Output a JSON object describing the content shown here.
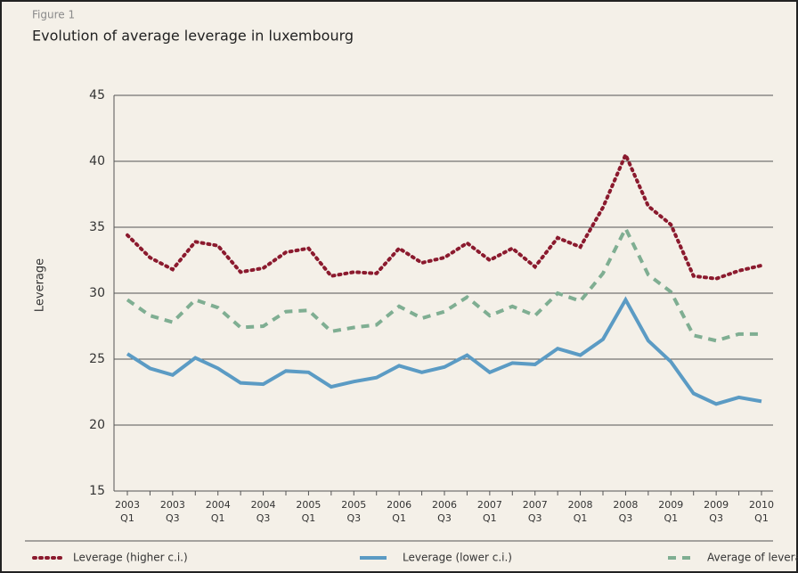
{
  "figure_label": "Figure 1",
  "chart_data": {
    "type": "line",
    "title": "Evolution of average leverage in luxembourg",
    "y_label": "Leverage",
    "categories": [
      "2003 Q1",
      null,
      "2003 Q3",
      null,
      "2004 Q1",
      null,
      "2004 Q3",
      null,
      "2005 Q1",
      null,
      "2005 Q3",
      null,
      "2006 Q1",
      null,
      "2006 Q3",
      null,
      "2007 Q1",
      null,
      "2007 Q3",
      null,
      "2008 Q1",
      null,
      "2008 Q3",
      null,
      "2009 Q1",
      null,
      "2009 Q3",
      null,
      "2010 Q1"
    ],
    "ylim": [
      15,
      45
    ],
    "yticks": [
      15,
      20,
      25,
      30,
      35,
      40,
      45
    ],
    "grid": true,
    "legend": "bottom",
    "series": [
      {
        "name": "Leverage (higher c.i.)",
        "color": "#8b1a2e",
        "line_style": "dotted",
        "values": [
          34.4,
          32.7,
          31.8,
          33.9,
          33.6,
          31.6,
          31.9,
          33.1,
          33.4,
          31.3,
          31.6,
          31.5,
          33.4,
          32.3,
          32.7,
          33.8,
          32.5,
          33.4,
          32.0,
          34.2,
          33.5,
          36.5,
          40.5,
          36.6,
          35.2,
          31.3,
          31.1,
          31.7,
          32.1
        ]
      },
      {
        "name": "Leverage (lower c.i.)",
        "color": "#5b9bc4",
        "line_style": "solid",
        "values": [
          25.4,
          24.3,
          23.8,
          25.1,
          24.3,
          23.2,
          23.1,
          24.1,
          24.0,
          22.9,
          23.3,
          23.6,
          24.5,
          24.0,
          24.4,
          25.3,
          24.0,
          24.7,
          24.6,
          25.8,
          25.3,
          26.5,
          29.5,
          26.4,
          24.8,
          22.4,
          21.6,
          22.1,
          21.8
        ]
      },
      {
        "name": "Average of leverage",
        "color": "#7fae92",
        "line_style": "dashed",
        "values": [
          29.5,
          28.3,
          27.8,
          29.5,
          28.9,
          27.4,
          27.5,
          28.6,
          28.7,
          27.1,
          27.4,
          27.6,
          29.0,
          28.1,
          28.6,
          29.7,
          28.3,
          29.0,
          28.3,
          30.0,
          29.4,
          31.5,
          34.9,
          31.4,
          30.1,
          26.8,
          26.4,
          26.9,
          26.9
        ]
      }
    ]
  }
}
